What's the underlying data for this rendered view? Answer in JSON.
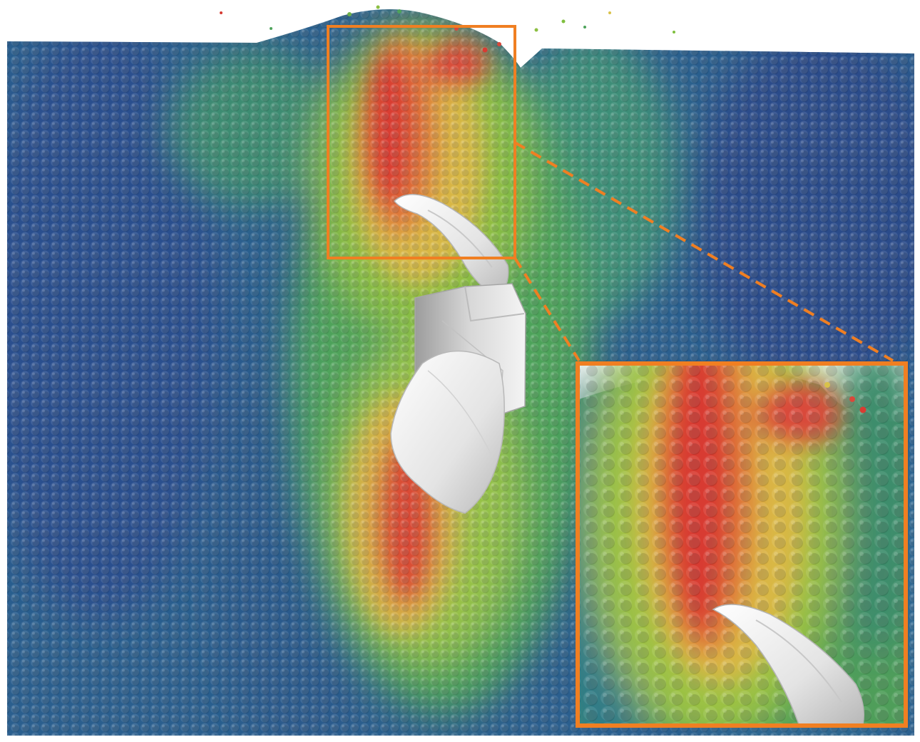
{
  "scene": {
    "type": "granular-particle-simulation",
    "subject": "propeller-blade-in-granular-bed",
    "colormap": [
      "#243a8c",
      "#2c6f94",
      "#3d9a63",
      "#7fbf3f",
      "#d9c24a",
      "#e07a3a",
      "#d63a32"
    ],
    "background": "#ffffff",
    "blade_color": "#e6e6e6",
    "highlight_color": "#f07f22",
    "inset": {
      "magnification": 1.7
    }
  }
}
